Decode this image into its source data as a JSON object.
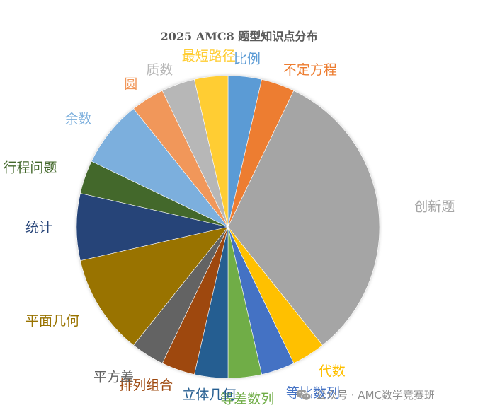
{
  "chart_data": {
    "type": "pie",
    "title": "2025 AMC8 题型知识点分布",
    "slices": [
      {
        "label": "比例",
        "value": 1,
        "color": "#5B9BD5",
        "label_color": "#5B9BD5"
      },
      {
        "label": "不定方程",
        "value": 1,
        "color": "#ED7D31",
        "label_color": "#ED7D31"
      },
      {
        "label": "创新题",
        "value": 9,
        "color": "#A5A5A5",
        "label_color": "#A5A5A5"
      },
      {
        "label": "代数",
        "value": 1,
        "color": "#FFC000",
        "label_color": "#FFC000"
      },
      {
        "label": "等比数列",
        "value": 1,
        "color": "#4472C4",
        "label_color": "#4472C4"
      },
      {
        "label": "等差数列",
        "value": 1,
        "color": "#70AD47",
        "label_color": "#70AD47"
      },
      {
        "label": "立体几何",
        "value": 1,
        "color": "#255E91",
        "label_color": "#255E91"
      },
      {
        "label": "排列组合",
        "value": 1,
        "color": "#9E480E",
        "label_color": "#9E480E"
      },
      {
        "label": "平方差",
        "value": 1,
        "color": "#636363",
        "label_color": "#636363"
      },
      {
        "label": "平面几何",
        "value": 3,
        "color": "#997300",
        "label_color": "#997300"
      },
      {
        "label": "统计",
        "value": 2,
        "color": "#264478",
        "label_color": "#264478"
      },
      {
        "label": "行程问题",
        "value": 1,
        "color": "#43682B",
        "label_color": "#43682B"
      },
      {
        "label": "余数",
        "value": 2,
        "color": "#7CAFDD",
        "label_color": "#7CAFDD"
      },
      {
        "label": "圆",
        "value": 1,
        "color": "#F1975A",
        "label_color": "#F1975A"
      },
      {
        "label": "质数",
        "value": 1,
        "color": "#B7B7B7",
        "label_color": "#B7B7B7"
      },
      {
        "label": "最短路径",
        "value": 1,
        "color": "#FFCD33",
        "label_color": "#FFCD33"
      }
    ],
    "legend": "none"
  },
  "watermark": {
    "text": "公众号 · AMC数学竞赛班"
  }
}
